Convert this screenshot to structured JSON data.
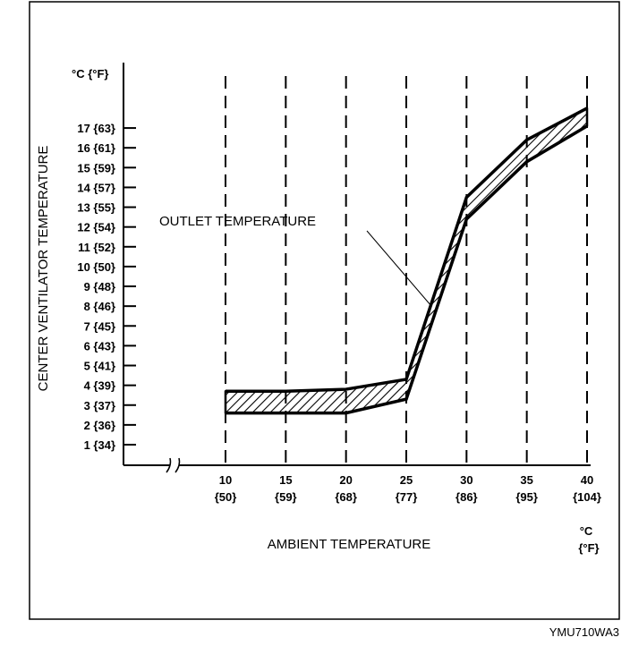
{
  "chart_data": {
    "type": "area",
    "title": "",
    "xlabel": "AMBIENT TEMPERATURE",
    "ylabel": "CENTER VENTILATOR TEMPERATURE",
    "y_unit_label": "°C {°F}",
    "x_unit_label_c": "°C",
    "x_unit_label_f": "{°F}",
    "x_ticks": [
      {
        "c": 10,
        "label": "10",
        "sub": "{50}"
      },
      {
        "c": 15,
        "label": "15",
        "sub": "{59}"
      },
      {
        "c": 20,
        "label": "20",
        "sub": "{68}"
      },
      {
        "c": 25,
        "label": "25",
        "sub": "{77}"
      },
      {
        "c": 30,
        "label": "30",
        "sub": "{86}"
      },
      {
        "c": 35,
        "label": "35",
        "sub": "{95}"
      },
      {
        "c": 40,
        "label": "40",
        "sub": "{104}"
      }
    ],
    "y_ticks": [
      {
        "v": 17,
        "label": "17 {63}"
      },
      {
        "v": 16,
        "label": "16 {61}"
      },
      {
        "v": 15,
        "label": "15 {59}"
      },
      {
        "v": 14,
        "label": "14 {57}"
      },
      {
        "v": 13,
        "label": "13 {55}"
      },
      {
        "v": 12,
        "label": "12 {54}"
      },
      {
        "v": 11,
        "label": "11 {52}"
      },
      {
        "v": 10,
        "label": "10 {50}"
      },
      {
        "v": 9,
        "label": "9 {48}"
      },
      {
        "v": 8,
        "label": "8 {46}"
      },
      {
        "v": 7,
        "label": "7 {45}"
      },
      {
        "v": 6,
        "label": "6 {43}"
      },
      {
        "v": 5,
        "label": "5 {41}"
      },
      {
        "v": 4,
        "label": "4 {39}"
      },
      {
        "v": 3,
        "label": "3 {37}"
      },
      {
        "v": 2,
        "label": "2 {36}"
      },
      {
        "v": 1,
        "label": "1 {34}"
      }
    ],
    "x_range": [
      10,
      40
    ],
    "y_range": [
      1,
      17
    ],
    "axis_break": true,
    "grid": "vertical dashed at x ticks",
    "series": [
      {
        "name": "OUTLET TEMPERATURE (upper limit)",
        "x": [
          10,
          15,
          20,
          25,
          30,
          35,
          40
        ],
        "y": [
          3.7,
          3.7,
          3.8,
          4.3,
          13.5,
          16.4,
          18.0
        ]
      },
      {
        "name": "OUTLET TEMPERATURE (lower limit)",
        "x": [
          10,
          15,
          20,
          25,
          30,
          35,
          40
        ],
        "y": [
          2.6,
          2.6,
          2.6,
          3.3,
          12.4,
          15.3,
          17.1
        ]
      }
    ],
    "annotation": "OUTLET TEMPERATURE",
    "figure_code": "YMU710WA3"
  }
}
